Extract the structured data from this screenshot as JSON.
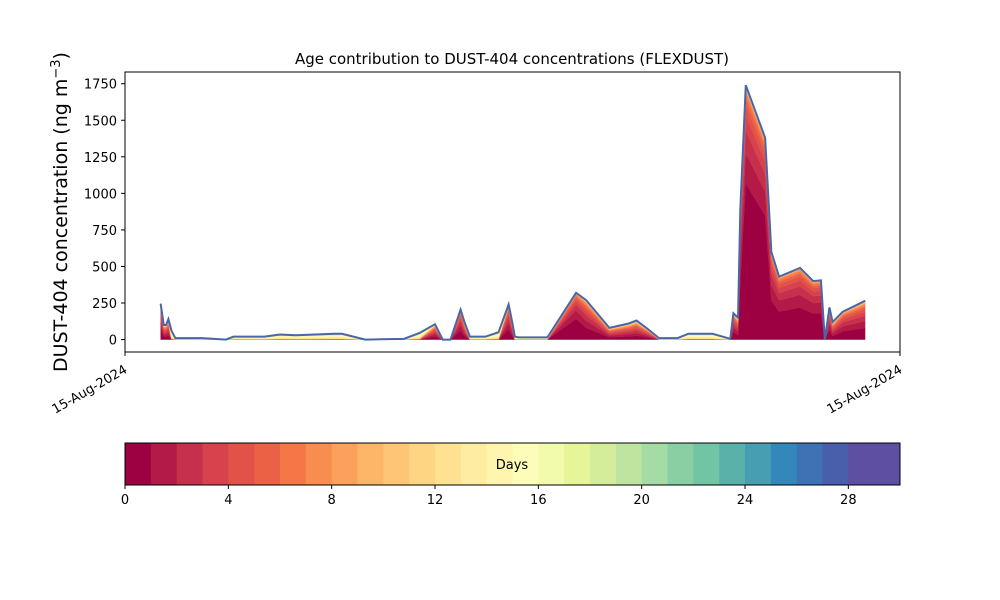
{
  "chart_data": {
    "type": "area",
    "title": "Age contribution to DUST-404 concentrations (FLEXDUST)",
    "ylabel_main": "DUST-404 concentration (ng m",
    "ylabel_sup": "−3",
    "ylabel_close": ")",
    "xlabel": "",
    "ylim": [
      -85,
      1830
    ],
    "xlim": [
      0,
      1
    ],
    "grid": false,
    "stacked": true,
    "x_tick_labels": [
      "15-Aug-2024",
      "15-Aug-2024"
    ],
    "y_ticks": [
      0,
      250,
      500,
      750,
      1000,
      1250,
      1500,
      1750
    ],
    "y_tick_labels": [
      "0",
      "250",
      "500",
      "750",
      "1000",
      "1250",
      "1500",
      "1750"
    ],
    "series_note": "",
    "x": [
      0.046,
      0.05,
      0.053,
      0.056,
      0.06,
      0.065,
      0.1,
      0.13,
      0.14,
      0.18,
      0.2,
      0.22,
      0.27,
      0.28,
      0.31,
      0.36,
      0.38,
      0.4,
      0.41,
      0.42,
      0.433,
      0.438,
      0.445,
      0.465,
      0.482,
      0.495,
      0.5,
      0.503,
      0.508,
      0.525,
      0.545,
      0.582,
      0.595,
      0.625,
      0.65,
      0.66,
      0.674,
      0.689,
      0.695,
      0.703,
      0.713,
      0.727,
      0.758,
      0.781,
      0.785,
      0.791,
      0.794,
      0.801,
      0.826,
      0.834,
      0.844,
      0.871,
      0.888,
      0.898,
      0.903,
      0.909,
      0.913,
      0.926,
      0.955
    ],
    "total": [
      245,
      100,
      100,
      140,
      60,
      10,
      10,
      0,
      20,
      20,
      35,
      30,
      40,
      40,
      0,
      5,
      45,
      105,
      0,
      0,
      205,
      120,
      20,
      20,
      50,
      240,
      110,
      20,
      15,
      15,
      15,
      320,
      270,
      80,
      110,
      130,
      75,
      10,
      10,
      10,
      10,
      40,
      40,
      5,
      180,
      150,
      900,
      1740,
      1380,
      600,
      430,
      490,
      400,
      405,
      0,
      220,
      120,
      190,
      265
    ],
    "series_meta": {
      "bands": 30,
      "band_days": 1
    },
    "colorbar": {
      "label": "Days",
      "range": [
        0,
        30
      ],
      "ticks": [
        0,
        4,
        8,
        12,
        16,
        20,
        24,
        28
      ],
      "tick_labels": [
        "0",
        "4",
        "8",
        "12",
        "16",
        "20",
        "24",
        "28"
      ],
      "colors": [
        "#9e0142",
        "#b31a47",
        "#c6304c",
        "#d8424d",
        "#e35248",
        "#ea6146",
        "#f57748",
        "#f88d52",
        "#fba15c",
        "#fdb567",
        "#fec574",
        "#fed683",
        "#fee291",
        "#feeda1",
        "#fff5ae",
        "#fbfdb8",
        "#f2faac",
        "#e6f598",
        "#d4ed9b",
        "#bde5a0",
        "#a5dba4",
        "#88cfa4",
        "#71c4a4",
        "#5ab1a9",
        "#479eb3",
        "#3487bb",
        "#3d72b4",
        "#4a5fac",
        "#5e4fa2",
        "#5e4fa2"
      ]
    },
    "outline_color": "#4a66a8"
  }
}
